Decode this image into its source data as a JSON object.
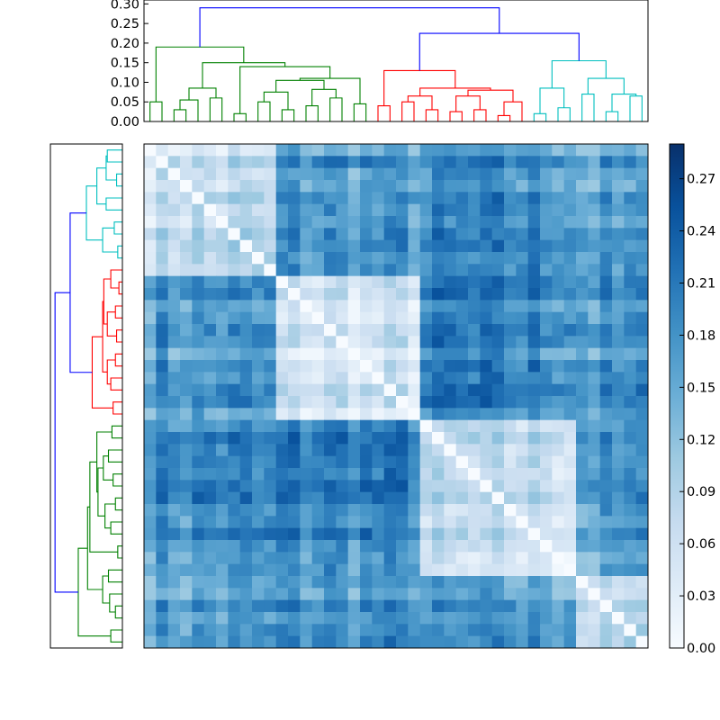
{
  "chart_data": [
    {
      "type": "heatmap",
      "title": "",
      "n": 42,
      "cluster_sizes": [
        11,
        12,
        13,
        6
      ],
      "cluster_order_top_to_bottom": [
        "cyan",
        "red",
        "green",
        "white-small"
      ],
      "colormap": "Blues",
      "value_range": [
        0.0,
        0.29
      ],
      "colorbar": {
        "ticks": [
          "0.00",
          "0.03",
          "0.06",
          "0.09",
          "0.12",
          "0.15",
          "0.18",
          "0.21",
          "0.24",
          "0.27"
        ],
        "tick_values": [
          0.0,
          0.03,
          0.06,
          0.09,
          0.12,
          0.15,
          0.18,
          0.21,
          0.24,
          0.27
        ]
      },
      "within_cluster_distance": [
        0.02,
        0.11
      ],
      "between_cluster_distance": [
        0.12,
        0.29
      ]
    },
    {
      "type": "dendrogram",
      "orientation": "top",
      "ylim": [
        0,
        0.31
      ],
      "y_ticks": [
        "0.00",
        "0.05",
        "0.10",
        "0.15",
        "0.20",
        "0.25",
        "0.30"
      ],
      "y_tick_values": [
        0.0,
        0.05,
        0.1,
        0.15,
        0.2,
        0.25,
        0.3
      ],
      "root_height": 0.29,
      "branches": [
        {
          "color": "green",
          "merge_height": 0.19
        },
        {
          "color": "red",
          "merge_height": 0.145
        },
        {
          "color": "cyan",
          "merge_height": 0.16
        }
      ]
    },
    {
      "type": "dendrogram",
      "orientation": "left",
      "tick_labels_shown": false
    }
  ],
  "colors": {
    "link_above_threshold": "#0000ff",
    "green_cluster": "#008000",
    "red_cluster": "#ff0000",
    "cyan_cluster": "#00bfbf",
    "cmap_low": "#f7fbff",
    "cmap_high": "#08306b"
  }
}
